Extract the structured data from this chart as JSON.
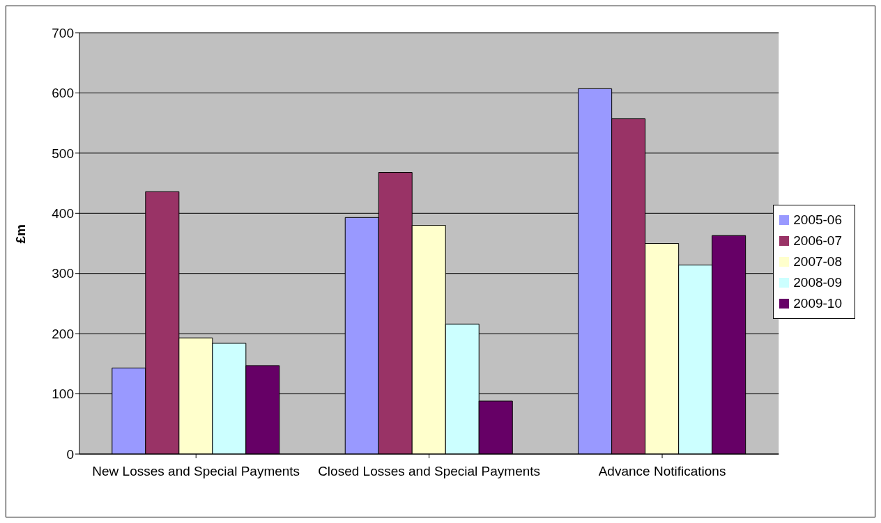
{
  "chart_data": {
    "type": "bar",
    "ylabel": "£m",
    "categories": [
      "New Losses and Special Payments",
      "Closed Losses and Special Payments",
      "Advance Notifications"
    ],
    "series": [
      {
        "name": "2005-06",
        "color": "#9999ff",
        "values": [
          143,
          393,
          607
        ]
      },
      {
        "name": "2006-07",
        "color": "#993366",
        "values": [
          436,
          468,
          557
        ]
      },
      {
        "name": "2007-08",
        "color": "#ffffcc",
        "values": [
          193,
          380,
          350
        ]
      },
      {
        "name": "2008-09",
        "color": "#ccffff",
        "values": [
          184,
          216,
          314
        ]
      },
      {
        "name": "2009-10",
        "color": "#660066",
        "values": [
          147,
          88,
          363
        ]
      }
    ],
    "ylim": [
      0,
      700
    ],
    "yticks": [
      0,
      100,
      200,
      300,
      400,
      500,
      600,
      700
    ],
    "grid": "y",
    "legend": "right"
  }
}
